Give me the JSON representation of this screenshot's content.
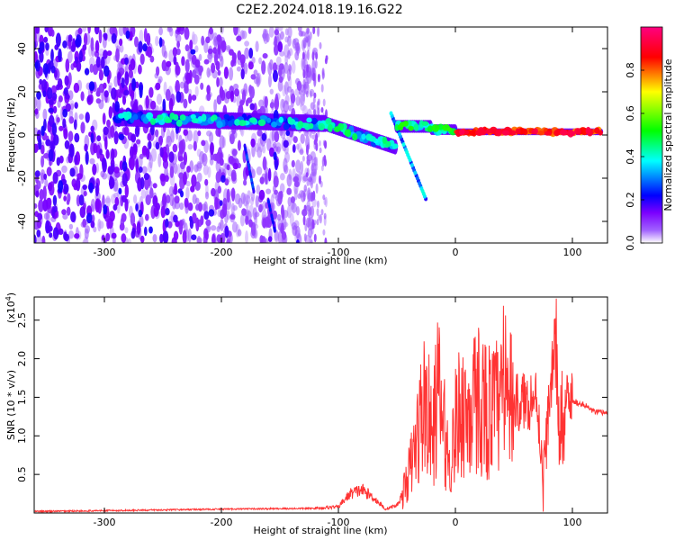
{
  "figure": {
    "title": "C2E2.2024.018.19.16.G22"
  },
  "chart_data": [
    {
      "type": "heatmap",
      "name": "spectrogram",
      "xlabel": "Height of straight line (km)",
      "ylabel": "Frequency (Hz)",
      "xlim": [
        -360,
        130
      ],
      "ylim": [
        -50,
        50
      ],
      "xticks": [
        -300,
        -200,
        -100,
        0,
        100
      ],
      "yticks": [
        -40,
        -20,
        0,
        20,
        40
      ],
      "colorbar": {
        "label": "Normalized spectral amplitude",
        "range": [
          0,
          1
        ],
        "ticks": [
          0.0,
          0.2,
          0.4,
          0.6,
          0.8
        ],
        "colormap": [
          "#ffffff",
          "#7b00ff",
          "#0000ff",
          "#00ffff",
          "#00ff00",
          "#ffff00",
          "#ff0000",
          "#ff0080"
        ]
      },
      "features": [
        {
          "x_range": [
            -360,
            -120
          ],
          "freq_range": [
            -50,
            50
          ],
          "amplitude": 0.1
        },
        {
          "x_range": [
            -290,
            -100
          ],
          "center_freq": 8,
          "amplitude": 0.35
        },
        {
          "x_range": [
            -100,
            -50
          ],
          "center_freq": -4,
          "amplitude": 0.45
        },
        {
          "x_range": [
            -50,
            0
          ],
          "center_freq": 4,
          "amplitude": 0.5
        },
        {
          "x_range": [
            0,
            130
          ],
          "center_freq": 1,
          "amplitude": 0.9
        }
      ]
    },
    {
      "type": "line",
      "name": "snr",
      "xlabel": "Height of straight line (km)",
      "ylabel": "SNR (10 * v/v)",
      "yscale_label": "(x10",
      "yscale_exp": "4",
      "y_multiplier": 10000,
      "xlim": [
        -360,
        130
      ],
      "ylim": [
        0,
        2.8
      ],
      "xticks": [
        -300,
        -200,
        -100,
        0,
        100
      ],
      "yticks": [
        0.5,
        1.0,
        1.5,
        2.0,
        2.5
      ],
      "line_color": "#ff3333",
      "x": [
        -360,
        -300,
        -200,
        -120,
        -100,
        -90,
        -80,
        -70,
        -60,
        -50,
        -45,
        -40,
        -35,
        -30,
        -25,
        -20,
        -15,
        -10,
        -5,
        0,
        5,
        10,
        20,
        30,
        40,
        50,
        60,
        70,
        75,
        80,
        85,
        90,
        95,
        100,
        110,
        120,
        130
      ],
      "y": [
        0.02,
        0.03,
        0.05,
        0.06,
        0.08,
        0.25,
        0.3,
        0.2,
        0.05,
        0.1,
        0.25,
        0.5,
        0.8,
        1.2,
        1.5,
        0.9,
        1.6,
        1.1,
        0.6,
        1.1,
        1.4,
        1.3,
        1.5,
        1.3,
        1.4,
        1.4,
        1.45,
        1.5,
        0.4,
        1.4,
        2.2,
        0.5,
        1.45,
        1.45,
        1.4,
        1.3,
        1.3
      ]
    }
  ]
}
